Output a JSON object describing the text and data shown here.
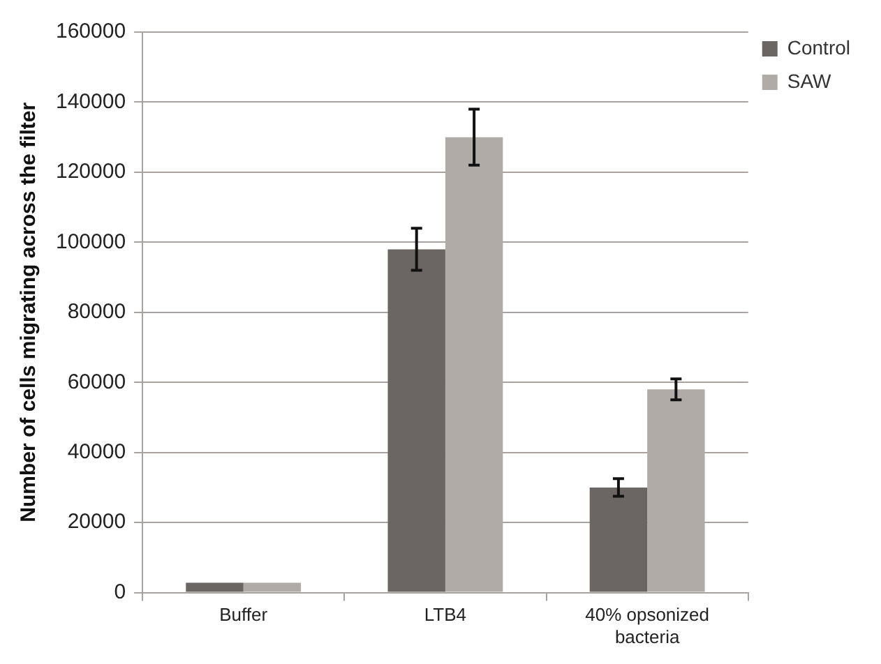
{
  "chart_data": {
    "type": "bar",
    "ylabel": "Number of cells migrating across the filter",
    "categories": [
      "Buffer",
      "LTB4",
      "40% opsonized bacteria"
    ],
    "series": [
      {
        "name": "Control",
        "color": "#6b6663",
        "values": [
          2800,
          98000,
          30000
        ],
        "errors": [
          null,
          6000,
          2500
        ]
      },
      {
        "name": "SAW",
        "color": "#b1aba8",
        "values": [
          2800,
          130000,
          58000
        ],
        "errors": [
          null,
          8000,
          3000
        ]
      }
    ],
    "ylim": [
      0,
      160000
    ],
    "yticks": [
      0,
      20000,
      40000,
      60000,
      80000,
      100000,
      120000,
      140000,
      160000
    ],
    "grid": "y",
    "legend": "top right"
  }
}
